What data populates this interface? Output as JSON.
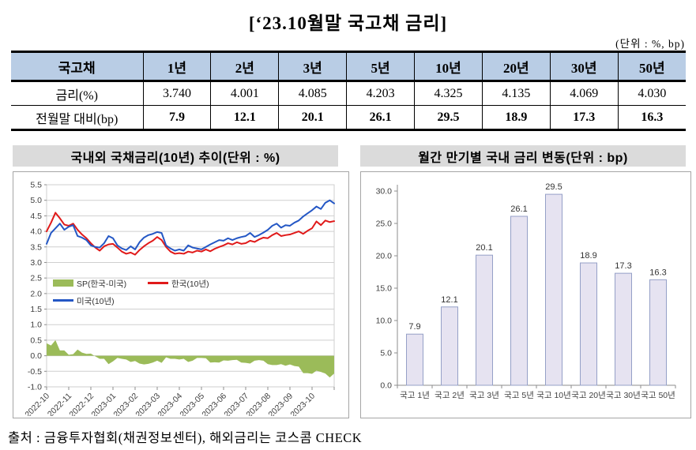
{
  "page": {
    "title": "[‘23.10월말 국고채 금리]",
    "unit_note": "(단위 : %, bp)"
  },
  "table": {
    "columns": [
      "국고채",
      "1년",
      "2년",
      "3년",
      "5년",
      "10년",
      "20년",
      "30년",
      "50년"
    ],
    "rows": [
      {
        "label": "금리(%)",
        "values": [
          "3.740",
          "4.001",
          "4.085",
          "4.203",
          "4.325",
          "4.135",
          "4.069",
          "4.030"
        ]
      },
      {
        "label": "전월말 대비(bp)",
        "values": [
          "7.9",
          "12.1",
          "20.1",
          "26.1",
          "29.5",
          "18.9",
          "17.3",
          "16.3"
        ]
      }
    ]
  },
  "footer": {
    "source": "출처 : 금융투자협회(채권정보센터), 해외금리는 코스콤 CHECK"
  },
  "colors": {
    "table_header_bg": "#B9CDE5",
    "chart_title_bg": "#DBDBDB",
    "korea_line": "#E01A1A",
    "us_line": "#2457C5",
    "spread_area": "#9BBB59",
    "bar_fill": "#E6E3F1",
    "bar_border": "#95A0C7",
    "grid": "#CFCFCF",
    "axis": "#8C8C8C",
    "tick_text": "#404040"
  },
  "chart_data": [
    {
      "type": "line",
      "title": "국내외 국채금리(10년) 추이(단위 : %)",
      "ylim": [
        -1.0,
        5.5
      ],
      "yticks": [
        5.5,
        5.0,
        4.5,
        4.0,
        3.5,
        3.0,
        2.5,
        2.0,
        1.5,
        1.0,
        0.5,
        0.0,
        -0.5,
        -1.0
      ],
      "x_tick_labels": [
        "2022-10",
        "2022-11",
        "2022-12",
        "2023-01",
        "2023-02",
        "2023-03",
        "2023-04",
        "2023-05",
        "2023-06",
        "2023-07",
        "2023-08",
        "2023-09",
        "2023-10"
      ],
      "grid": true,
      "legend_position": "inside-left",
      "series": [
        {
          "name": "SP(한국-미국)",
          "kind": "area",
          "color": "#9BBB59",
          "values": [
            0.4,
            0.33,
            0.5,
            0.17,
            0.17,
            0.03,
            0.05,
            0.2,
            0.1,
            0.06,
            0.07,
            -0.02,
            -0.1,
            -0.1,
            -0.27,
            -0.18,
            -0.07,
            -0.1,
            -0.12,
            -0.2,
            -0.17,
            -0.25,
            -0.28,
            -0.26,
            -0.22,
            -0.16,
            -0.23,
            -0.05,
            -0.1,
            -0.1,
            -0.12,
            -0.1,
            -0.2,
            -0.16,
            -0.07,
            -0.07,
            -0.08,
            -0.22,
            -0.21,
            -0.22,
            -0.15,
            -0.16,
            -0.14,
            -0.13,
            -0.22,
            -0.23,
            -0.25,
            -0.16,
            -0.14,
            -0.16,
            -0.27,
            -0.3,
            -0.3,
            -0.27,
            -0.32,
            -0.28,
            -0.33,
            -0.35,
            -0.56,
            -0.56,
            -0.58,
            -0.48,
            -0.52,
            -0.57,
            -0.7,
            -0.57
          ]
        },
        {
          "name": "한국(10년)",
          "kind": "line",
          "color": "#E01A1A",
          "values": [
            4.0,
            4.28,
            4.6,
            4.42,
            4.22,
            4.18,
            4.25,
            4.05,
            3.9,
            3.78,
            3.62,
            3.48,
            3.38,
            3.52,
            3.58,
            3.6,
            3.48,
            3.35,
            3.28,
            3.32,
            3.25,
            3.4,
            3.52,
            3.62,
            3.7,
            3.82,
            3.72,
            3.5,
            3.35,
            3.28,
            3.3,
            3.28,
            3.35,
            3.32,
            3.38,
            3.35,
            3.42,
            3.36,
            3.44,
            3.5,
            3.55,
            3.62,
            3.58,
            3.65,
            3.6,
            3.62,
            3.7,
            3.66,
            3.74,
            3.8,
            3.78,
            3.88,
            3.95,
            3.85,
            3.88,
            3.9,
            3.95,
            4.0,
            3.92,
            4.02,
            4.1,
            4.32,
            4.2,
            4.35,
            4.3,
            4.33
          ]
        },
        {
          "name": "미국(10년)",
          "kind": "line",
          "color": "#2457C5",
          "values": [
            3.6,
            3.95,
            4.1,
            4.25,
            4.05,
            4.15,
            4.2,
            3.85,
            3.8,
            3.72,
            3.55,
            3.5,
            3.48,
            3.62,
            3.85,
            3.78,
            3.55,
            3.45,
            3.4,
            3.52,
            3.42,
            3.65,
            3.8,
            3.88,
            3.92,
            3.98,
            3.95,
            3.55,
            3.45,
            3.38,
            3.42,
            3.38,
            3.55,
            3.48,
            3.45,
            3.42,
            3.5,
            3.58,
            3.65,
            3.72,
            3.7,
            3.78,
            3.72,
            3.78,
            3.82,
            3.85,
            3.95,
            3.82,
            3.88,
            3.96,
            4.05,
            4.18,
            4.25,
            4.12,
            4.2,
            4.18,
            4.28,
            4.35,
            4.48,
            4.58,
            4.68,
            4.8,
            4.72,
            4.92,
            5.0,
            4.9
          ]
        }
      ]
    },
    {
      "type": "bar",
      "title": "월간 만기별 국내 금리 변동(단위 : bp)",
      "categories": [
        "국고 1년",
        "국고 2년",
        "국고 3년",
        "국고 5년",
        "국고 10년",
        "국고 20년",
        "국고 30년",
        "국고 50년"
      ],
      "values": [
        7.9,
        12.1,
        20.1,
        26.1,
        29.5,
        18.9,
        17.3,
        16.3
      ],
      "ylim": [
        0,
        30
      ],
      "yticks": [
        30.0,
        25.0,
        20.0,
        15.0,
        10.0,
        5.0,
        0.0
      ],
      "grid": false,
      "bar_fill": "#E6E3F1",
      "bar_border": "#95A0C7"
    }
  ]
}
